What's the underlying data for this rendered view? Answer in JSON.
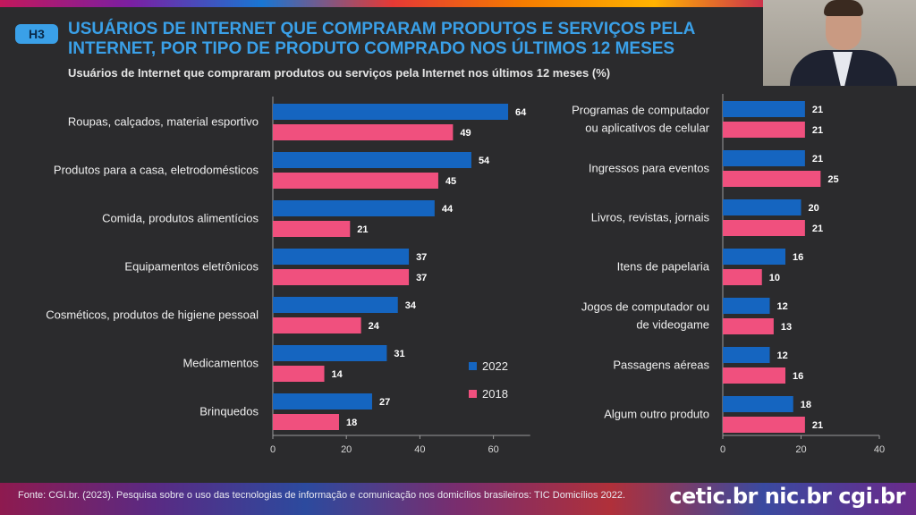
{
  "badge": "H3",
  "title": "USUÁRIOS DE INTERNET QUE COMPRARAM PRODUTOS E SERVIÇOS PELA INTERNET, POR TIPO DE PRODUTO COMPRADO NOS ÚLTIMOS 12 MESES",
  "subtitle": "Usuários de Internet que compraram produtos ou serviços pela Internet nos últimos 12 meses (%)",
  "footer": "Fonte: CGI.br. (2023). Pesquisa sobre o uso das tecnologias de informação e comunicação nos domicílios brasileiros: TIC Domicílios 2022.",
  "logos": "cetic.br  nic.br  cgi.br",
  "colors": {
    "s2022": "#1565c0",
    "s2018": "#f0507e"
  },
  "chart_data": [
    {
      "type": "bar",
      "orientation": "horizontal",
      "categories": [
        "Roupas, calçados, material esportivo",
        "Produtos para a casa, eletrodomésticos",
        "Comida, produtos alimentícios",
        "Equipamentos eletrônicos",
        "Cosméticos, produtos de higiene pessoal",
        "Medicamentos",
        "Brinquedos"
      ],
      "series": [
        {
          "name": "2022",
          "values": [
            64,
            54,
            44,
            37,
            34,
            31,
            27
          ]
        },
        {
          "name": "2018",
          "values": [
            49,
            45,
            21,
            37,
            24,
            14,
            18
          ]
        }
      ],
      "xlim": [
        0,
        70
      ],
      "ticks": [
        0,
        20,
        40,
        60
      ],
      "legend": "right"
    },
    {
      "type": "bar",
      "orientation": "horizontal",
      "categories": [
        [
          "Programas de computador",
          "ou aplicativos de celular"
        ],
        [
          "Ingressos para eventos"
        ],
        [
          "Livros, revistas, jornais"
        ],
        [
          "Itens de papelaria"
        ],
        [
          "Jogos de computador ou",
          "de videogame"
        ],
        [
          "Passagens aéreas"
        ],
        [
          "Algum outro produto"
        ]
      ],
      "series": [
        {
          "name": "2022",
          "values": [
            21,
            21,
            20,
            16,
            12,
            12,
            18
          ]
        },
        {
          "name": "2018",
          "values": [
            21,
            25,
            21,
            10,
            13,
            16,
            21
          ]
        }
      ],
      "xlim": [
        0,
        40
      ],
      "ticks": [
        0,
        20,
        40
      ]
    }
  ]
}
